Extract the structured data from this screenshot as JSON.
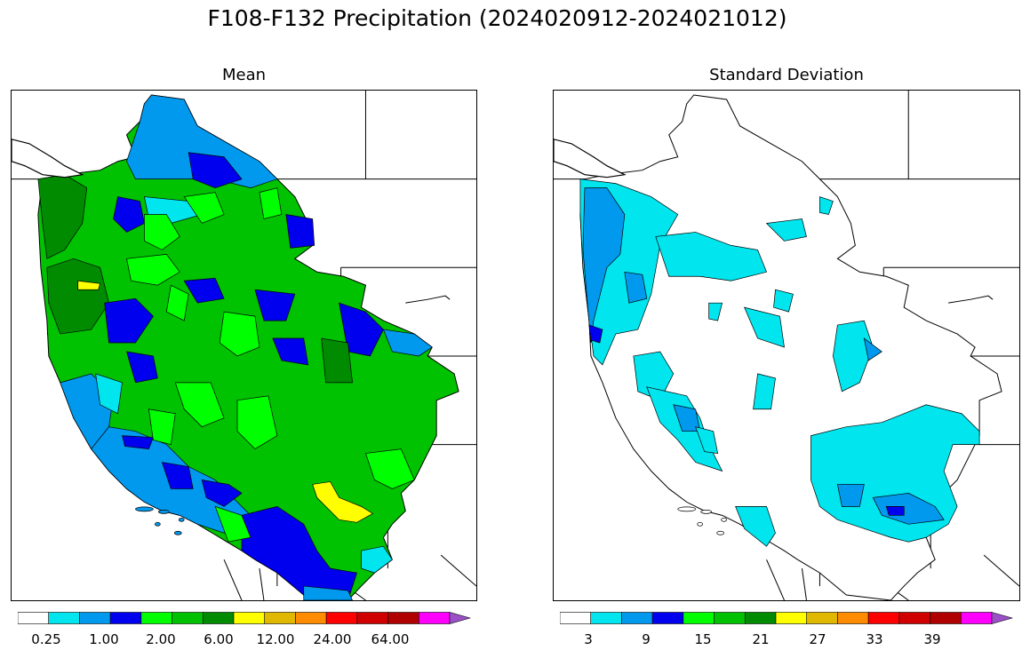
{
  "title": "F108-F132 Precipitation (2024020912-2024021012)",
  "panels": [
    {
      "title": "Mean"
    },
    {
      "title": "Standard Deviation"
    }
  ],
  "colors": {
    "white": "#ffffff",
    "cyan": "#00e5ee",
    "lightblue": "#0099ee",
    "blue": "#0000ee",
    "brightgreen": "#00ff00",
    "green": "#00c200",
    "darkgreen": "#008b00",
    "yellow": "#ffff00",
    "gold": "#e0b800",
    "orange": "#ff8c00",
    "red": "#ff0000",
    "crimson": "#d00000",
    "darkred": "#b00000",
    "magenta": "#ff00ff",
    "purple": "#9b50c8"
  },
  "mean_colorbar": {
    "colors": [
      "#ffffff",
      "#00e5ee",
      "#0099ee",
      "#0000ee",
      "#00ff00",
      "#00c200",
      "#008b00",
      "#ffff00",
      "#e0b800",
      "#ff8c00",
      "#ff0000",
      "#d00000",
      "#b00000",
      "#ff00ff",
      "#9b50c8"
    ],
    "tick_labels": [
      "0.25",
      "1.00",
      "2.00",
      "6.00",
      "12.00",
      "24.00",
      "64.00"
    ]
  },
  "sd_colorbar": {
    "colors": [
      "#ffffff",
      "#00e5ee",
      "#0099ee",
      "#0000ee",
      "#00ff00",
      "#00c200",
      "#008b00",
      "#ffff00",
      "#e0b800",
      "#ff8c00",
      "#ff0000",
      "#d00000",
      "#b00000",
      "#ff00ff",
      "#9b50c8"
    ],
    "tick_labels": [
      "3",
      "9",
      "15",
      "21",
      "27",
      "33",
      "39"
    ]
  }
}
